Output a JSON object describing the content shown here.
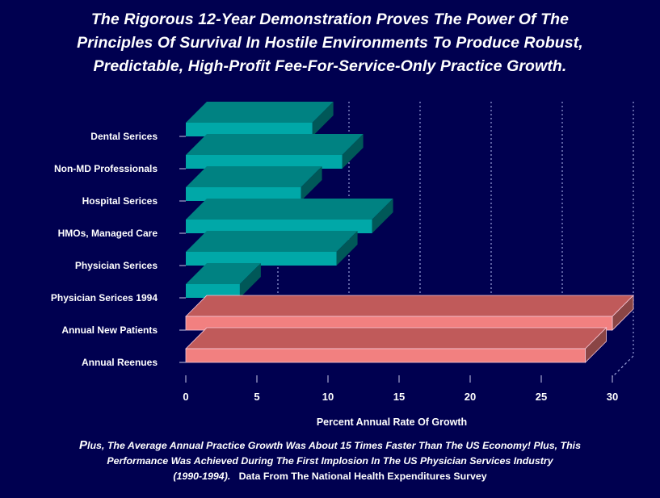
{
  "title_lines": [
    "The Rigorous 12-Year Demonstration Proves The Power Of The",
    "Principles Of Survival In Hostile Environments To Produce Robust,",
    "Predictable, High-Profit Fee-For-Service-Only Practice Growth."
  ],
  "footer": {
    "lead": "P",
    "line1": "lus, The Average Annual Practice Growth Was About 15 Times Faster Than The US Economy! Plus, This",
    "line2": "Performance Was Achieved During The First Implosion  In The US Physician Services Industry",
    "line3_italic": "(1990-1994).",
    "line3_plain": "Data From The  National Health Expenditures Survey"
  },
  "colors": {
    "background": "#000050",
    "teal_front": "#00A8A8",
    "teal_top": "#008282",
    "teal_side": "#005858",
    "salmon_front": "#F28080",
    "salmon_top": "#C05A5A",
    "salmon_side": "#8A4545",
    "gridline": "#9aa0d8"
  },
  "chart_data": {
    "type": "bar",
    "orientation": "horizontal",
    "style": "3d",
    "title": "",
    "xlabel": "Percent Annual Rate Of Growth",
    "ylabel": "",
    "xlim": [
      0,
      30
    ],
    "xticks": [
      0,
      5,
      10,
      15,
      20,
      25,
      30
    ],
    "grid": "vertical dotted",
    "legend": "none",
    "categories": [
      "Dental Serices",
      "Non-MD Professionals",
      "Hospital Serices",
      "HMOs, Managed Care",
      "Physician Serices",
      "Physician Serices 1994",
      "Annual New Patients",
      "Annual Reenues"
    ],
    "values": [
      8.9,
      11.0,
      8.1,
      13.1,
      10.6,
      3.8,
      30.0,
      28.1
    ],
    "bar_colors": [
      "teal",
      "teal",
      "teal",
      "teal",
      "teal",
      "teal",
      "salmon",
      "salmon"
    ]
  }
}
